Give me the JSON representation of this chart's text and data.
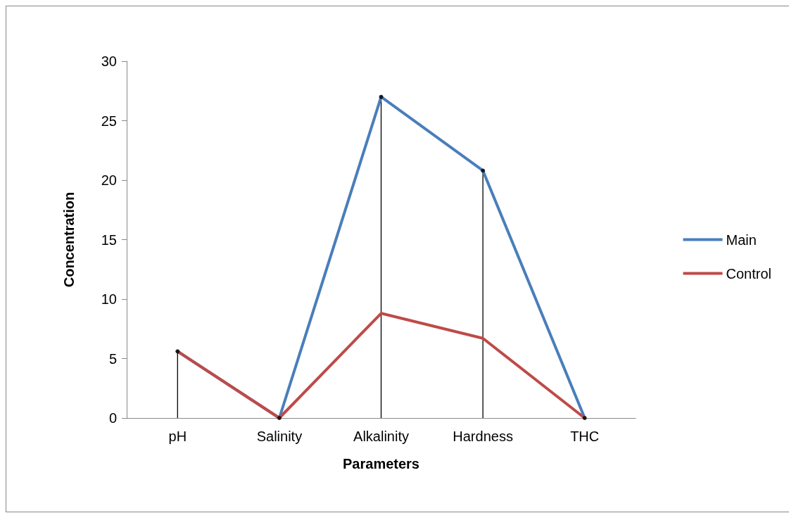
{
  "chart_data": {
    "type": "line",
    "xlabel": "Parameters",
    "ylabel": "Concentration",
    "categories": [
      "pH",
      "Salinity",
      "Alkalinity",
      "Hardness",
      "THC"
    ],
    "series": [
      {
        "type": "lollipop",
        "color": "#000000",
        "values": [
          5.6,
          0,
          27,
          20.8,
          0
        ]
      },
      {
        "name": "Main",
        "color": "#4a7ebb",
        "values": [
          5.6,
          0,
          27,
          20.8,
          0
        ]
      },
      {
        "name": "Control",
        "color": "#be4b48",
        "values": [
          5.6,
          0,
          8.8,
          6.7,
          0
        ]
      }
    ],
    "ylim": [
      0,
      30
    ],
    "yticks": [
      0,
      5,
      10,
      15,
      20,
      25,
      30
    ],
    "grid": false,
    "legend": "right",
    "marker": "none",
    "line_style": "solid"
  }
}
